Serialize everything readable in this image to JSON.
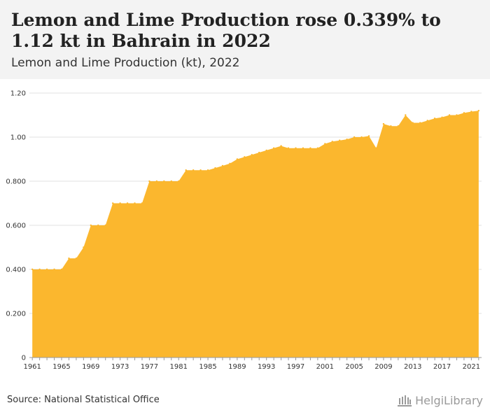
{
  "header": {
    "title": "Lemon and Lime Production rose 0.339% to 1.12 kt in Bahrain in 2022",
    "subtitle": "Lemon and Lime Production (kt), 2022"
  },
  "footer": {
    "source": "Source: National Statistical Office",
    "brand": "HelgiLibrary"
  },
  "colors": {
    "area": "#FBB72E",
    "grid": "#e2e2e2",
    "text": "#333333"
  },
  "icons": {
    "brand": "library-building-icon"
  },
  "chart_data": {
    "type": "area",
    "ylim": [
      0,
      1.2
    ],
    "xlim": [
      1961,
      2022
    ],
    "y_ticks": [
      0,
      0.2,
      0.4,
      0.6,
      0.8,
      1.0,
      1.2
    ],
    "y_tick_labels": [
      "0",
      "0.200",
      "0.400",
      "0.600",
      "0.800",
      "1.00",
      "1.20"
    ],
    "x_ticks": [
      1961,
      1965,
      1969,
      1973,
      1977,
      1981,
      1985,
      1989,
      1993,
      1997,
      2001,
      2005,
      2009,
      2013,
      2017,
      2021
    ],
    "grid": "horizontal",
    "x": [
      1961,
      1962,
      1963,
      1964,
      1965,
      1966,
      1967,
      1968,
      1969,
      1970,
      1971,
      1972,
      1973,
      1974,
      1975,
      1976,
      1977,
      1978,
      1979,
      1980,
      1981,
      1982,
      1983,
      1984,
      1985,
      1986,
      1987,
      1988,
      1989,
      1990,
      1991,
      1992,
      1993,
      1994,
      1995,
      1996,
      1997,
      1998,
      1999,
      2000,
      2001,
      2002,
      2003,
      2004,
      2005,
      2006,
      2007,
      2008,
      2009,
      2010,
      2011,
      2012,
      2013,
      2014,
      2015,
      2016,
      2017,
      2018,
      2019,
      2020,
      2021,
      2022
    ],
    "values": [
      0.4,
      0.4,
      0.4,
      0.4,
      0.4,
      0.45,
      0.45,
      0.5,
      0.6,
      0.6,
      0.6,
      0.7,
      0.7,
      0.7,
      0.7,
      0.7,
      0.8,
      0.8,
      0.8,
      0.8,
      0.8,
      0.85,
      0.85,
      0.85,
      0.85,
      0.86,
      0.87,
      0.88,
      0.9,
      0.91,
      0.92,
      0.93,
      0.94,
      0.95,
      0.96,
      0.95,
      0.95,
      0.95,
      0.95,
      0.95,
      0.97,
      0.98,
      0.985,
      0.99,
      1.0,
      1.0,
      1.005,
      0.95,
      1.06,
      1.05,
      1.05,
      1.1,
      1.065,
      1.065,
      1.075,
      1.085,
      1.09,
      1.1,
      1.1,
      1.11,
      1.116,
      1.12
    ]
  }
}
